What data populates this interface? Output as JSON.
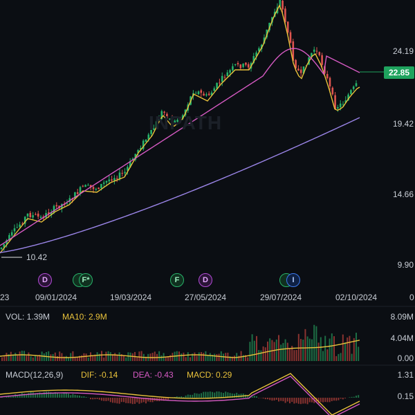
{
  "watermark": "INPATH",
  "price_axis": [
    "24.19",
    "19.42",
    "14.66",
    "9.90"
  ],
  "current_price": "22.85",
  "min_price_label": "10.42",
  "date_axis": [
    "23",
    "09/01/2024",
    "19/03/2024",
    "27/05/2024",
    "29/07/2024",
    "02/10/2024",
    "0"
  ],
  "event_markers": [
    {
      "letter": "D",
      "type": "d"
    },
    {
      "letter": "F*",
      "type": "f"
    },
    {
      "letter": "F",
      "type": "f"
    },
    {
      "letter": "D",
      "type": "d"
    },
    {
      "letter": "I",
      "type": "i"
    }
  ],
  "volume": {
    "vol_label": "VOL: 1.39M",
    "ma_label": "MA10: 2.9M",
    "axis": [
      "8.09M",
      "4.04M",
      "0.00"
    ]
  },
  "macd": {
    "title": "MACD(12,26,9)",
    "dif": "DIF: -0.14",
    "dea": "DEA: -0.43",
    "macd": "MACD: 0.29",
    "axis": [
      "1.31",
      "0.15"
    ]
  },
  "colors": {
    "up": "#26b36b",
    "down": "#e0554f",
    "ma_short": "#e9c23b",
    "ma_mid": "#d65ac3",
    "ma_long": "#9b85e8",
    "price_tag": "#1fa35e"
  }
}
